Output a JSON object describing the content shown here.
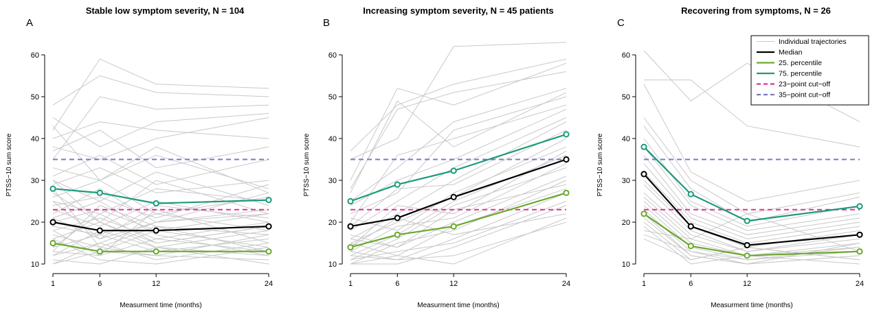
{
  "colors": {
    "individual": "#c8c8c8",
    "median": "#000000",
    "p25": "#6aa82e",
    "p75": "#1b9a7a",
    "cutoff23": "#e0338a",
    "cutoff35": "#7b78bd"
  },
  "legend": {
    "placement": "top-right of panel C",
    "items": [
      {
        "key": "individual",
        "label": "Individual trajectories",
        "style": "thin"
      },
      {
        "key": "median",
        "label": "Median",
        "style": "solid"
      },
      {
        "key": "p25",
        "label": "25. percentile",
        "style": "solid"
      },
      {
        "key": "p75",
        "label": "75. percentile",
        "style": "solid"
      },
      {
        "key": "cutoff23",
        "label": "23−point cut−off",
        "style": "dashed"
      },
      {
        "key": "cutoff35",
        "label": "35−point cut−off",
        "style": "dashed"
      }
    ]
  },
  "chart_data": [
    {
      "type": "line",
      "letter": "A",
      "title": "Stable low symptom severity, N = 104",
      "xlabel": "Measurment time (months)",
      "ylabel": "PTSS−10 sum score",
      "x": [
        1,
        6,
        12,
        24
      ],
      "x_ticks": [
        "1",
        "6",
        "12",
        "24"
      ],
      "ylim": [
        10,
        63
      ],
      "y_ticks": [
        10,
        20,
        30,
        40,
        50,
        60
      ],
      "grid": false,
      "cutoffs": [
        23,
        35
      ],
      "series": [
        {
          "key": "median",
          "values": [
            20,
            18,
            18,
            19
          ]
        },
        {
          "key": "p25",
          "values": [
            15,
            13,
            13,
            13
          ]
        },
        {
          "key": "p75",
          "values": [
            28,
            27,
            24.5,
            25.3
          ]
        }
      ],
      "individual": [
        [
          42,
          59,
          53,
          52
        ],
        [
          48,
          55,
          51,
          50
        ],
        [
          35,
          50,
          47,
          48
        ],
        [
          45,
          38,
          44,
          46
        ],
        [
          40,
          44,
          42,
          40
        ],
        [
          38,
          35,
          40,
          45
        ],
        [
          43,
          30,
          36,
          28
        ],
        [
          37,
          42,
          33,
          38
        ],
        [
          33,
          30,
          38,
          27
        ],
        [
          31,
          36,
          29,
          35
        ],
        [
          30,
          25,
          32,
          24
        ],
        [
          29,
          33,
          27,
          30
        ],
        [
          27,
          20,
          30,
          22
        ],
        [
          26,
          30,
          22,
          26
        ],
        [
          25,
          22,
          28,
          25
        ],
        [
          24,
          26,
          21,
          29
        ],
        [
          23,
          19,
          25,
          20
        ],
        [
          22,
          28,
          20,
          23
        ],
        [
          21,
          16,
          24,
          21
        ],
        [
          20,
          23,
          18,
          22
        ],
        [
          19,
          17,
          22,
          18
        ],
        [
          18,
          21,
          16,
          20
        ],
        [
          17,
          14,
          19,
          17
        ],
        [
          16,
          20,
          15,
          19
        ],
        [
          15,
          13,
          18,
          14
        ],
        [
          14,
          17,
          13,
          16
        ],
        [
          13,
          12,
          16,
          13
        ],
        [
          12,
          15,
          11,
          15
        ],
        [
          11,
          10,
          14,
          12
        ],
        [
          10,
          13,
          12,
          11
        ],
        [
          16,
          11,
          10,
          14
        ],
        [
          12,
          18,
          14,
          10
        ],
        [
          28,
          14,
          12,
          17
        ],
        [
          21,
          25,
          17,
          12
        ],
        [
          18,
          12,
          23,
          15
        ],
        [
          14,
          22,
          15,
          19
        ],
        [
          25,
          16,
          20,
          27
        ],
        [
          30,
          20,
          14,
          18
        ],
        [
          10,
          15,
          20,
          22
        ],
        [
          13,
          24,
          19,
          13
        ]
      ]
    },
    {
      "type": "line",
      "letter": "B",
      "title": "Increasing symptom severity, N = 45 patients",
      "xlabel": "Measurment time (months)",
      "ylabel": "PTSS−10 sum score",
      "x": [
        1,
        6,
        12,
        24
      ],
      "x_ticks": [
        "1",
        "6",
        "12",
        "24"
      ],
      "ylim": [
        10,
        63
      ],
      "y_ticks": [
        10,
        20,
        30,
        40,
        50,
        60
      ],
      "grid": false,
      "cutoffs": [
        23,
        35
      ],
      "series": [
        {
          "key": "median",
          "values": [
            19,
            21,
            26,
            35
          ]
        },
        {
          "key": "p25",
          "values": [
            14,
            17,
            19,
            27
          ]
        },
        {
          "key": "p75",
          "values": [
            25,
            29,
            32.3,
            41
          ]
        }
      ],
      "individual": [
        [
          35,
          40,
          62,
          63
        ],
        [
          37,
          48,
          53,
          59
        ],
        [
          30,
          52,
          48,
          58
        ],
        [
          28,
          47,
          51,
          56
        ],
        [
          25,
          33,
          44,
          52
        ],
        [
          27,
          49,
          38,
          51
        ],
        [
          22,
          27,
          42,
          50
        ],
        [
          20,
          36,
          40,
          48
        ],
        [
          24,
          30,
          35,
          47
        ],
        [
          18,
          25,
          33,
          45
        ],
        [
          16,
          22,
          30,
          44
        ],
        [
          19,
          28,
          29,
          42
        ],
        [
          15,
          20,
          26,
          40
        ],
        [
          21,
          18,
          27,
          38
        ],
        [
          14,
          24,
          22,
          37
        ],
        [
          12,
          17,
          25,
          36
        ],
        [
          13,
          19,
          21,
          34
        ],
        [
          11,
          16,
          24,
          33
        ],
        [
          17,
          14,
          20,
          31
        ],
        [
          10,
          15,
          18,
          30
        ],
        [
          15,
          12,
          19,
          28
        ],
        [
          12,
          11,
          16,
          27
        ],
        [
          11,
          13,
          15,
          25
        ],
        [
          10,
          10,
          14,
          24
        ],
        [
          14,
          21,
          17,
          22
        ],
        [
          10,
          12,
          10,
          21
        ],
        [
          13,
          11,
          12,
          20
        ],
        [
          16,
          14,
          23,
          29
        ]
      ]
    },
    {
      "type": "line",
      "letter": "C",
      "title": "Recovering from symptoms, N = 26",
      "xlabel": "Measurment time (months)",
      "ylabel": "PTSS−10 sum score",
      "x": [
        1,
        6,
        12,
        24
      ],
      "x_ticks": [
        "1",
        "6",
        "12",
        "24"
      ],
      "ylim": [
        10,
        63
      ],
      "y_ticks": [
        10,
        20,
        30,
        40,
        50,
        60
      ],
      "grid": false,
      "cutoffs": [
        23,
        35
      ],
      "series": [
        {
          "key": "median",
          "values": [
            31.5,
            19,
            14.5,
            17
          ]
        },
        {
          "key": "p25",
          "values": [
            22,
            14.3,
            12,
            13
          ]
        },
        {
          "key": "p75",
          "values": [
            38,
            26.7,
            20.3,
            23.8
          ]
        }
      ],
      "individual": [
        [
          61,
          49,
          58,
          44
        ],
        [
          54,
          54,
          43,
          38
        ],
        [
          53,
          32,
          25,
          30
        ],
        [
          45,
          30,
          22,
          27
        ],
        [
          43,
          28,
          20,
          26
        ],
        [
          40,
          25,
          19,
          24
        ],
        [
          38,
          24,
          18,
          22
        ],
        [
          36,
          22,
          17,
          21
        ],
        [
          34,
          21,
          16,
          20
        ],
        [
          32,
          20,
          15,
          19
        ],
        [
          30,
          19,
          14,
          18
        ],
        [
          29,
          18,
          13,
          17
        ],
        [
          27,
          17,
          13,
          16
        ],
        [
          26,
          16,
          12,
          15
        ],
        [
          25,
          15,
          12,
          14
        ],
        [
          24,
          14,
          11,
          14
        ],
        [
          23,
          13,
          11,
          13
        ],
        [
          22,
          12,
          10,
          12
        ],
        [
          21,
          12,
          10,
          12
        ],
        [
          20,
          11,
          14,
          11
        ],
        [
          19,
          10,
          12,
          10
        ],
        [
          18,
          16,
          22,
          13
        ],
        [
          17,
          13,
          10,
          15
        ],
        [
          16,
          11,
          14,
          11
        ]
      ]
    }
  ]
}
